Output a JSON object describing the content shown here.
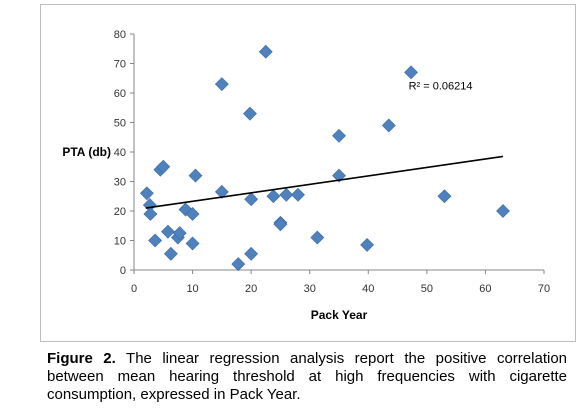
{
  "figure": {
    "caption_label": "Figure 2.",
    "caption_text": " The linear regression analysis report the positive correlation between mean hearing threshold at high frequencies with cigarette consumption, expressed in Pack Year."
  },
  "chart_data": {
    "type": "scatter",
    "xlabel": "Pack Year",
    "ylabel": "PTA (db)",
    "xlim": [
      0,
      70
    ],
    "ylim": [
      0,
      80
    ],
    "x_ticks": [
      "0",
      "10",
      "20",
      "30",
      "40",
      "50",
      "60",
      "70"
    ],
    "y_ticks": [
      "0",
      "10",
      "20",
      "30",
      "40",
      "50",
      "60",
      "70",
      "80"
    ],
    "grid": false,
    "marker": "diamond",
    "marker_color": "#4f81bd",
    "trendline": {
      "x": [
        2,
        63
      ],
      "y": [
        21,
        38.5
      ],
      "color": "#000000"
    },
    "annotation": {
      "text": "R² = 0.06214",
      "x": 52,
      "y": 62.5
    },
    "points": [
      {
        "x": 2.2,
        "y": 26
      },
      {
        "x": 2.7,
        "y": 22
      },
      {
        "x": 2.8,
        "y": 19
      },
      {
        "x": 3.6,
        "y": 10
      },
      {
        "x": 4.5,
        "y": 34
      },
      {
        "x": 5,
        "y": 35
      },
      {
        "x": 5.8,
        "y": 13
      },
      {
        "x": 6.3,
        "y": 5.5
      },
      {
        "x": 7.5,
        "y": 11
      },
      {
        "x": 7.8,
        "y": 12.5
      },
      {
        "x": 8.8,
        "y": 20.5
      },
      {
        "x": 10,
        "y": 19
      },
      {
        "x": 10,
        "y": 9
      },
      {
        "x": 10.5,
        "y": 32
      },
      {
        "x": 15,
        "y": 63
      },
      {
        "x": 15,
        "y": 26.5
      },
      {
        "x": 17.8,
        "y": 2
      },
      {
        "x": 19.8,
        "y": 53
      },
      {
        "x": 20,
        "y": 24
      },
      {
        "x": 20,
        "y": 5.5
      },
      {
        "x": 22.5,
        "y": 74
      },
      {
        "x": 23.8,
        "y": 25
      },
      {
        "x": 25,
        "y": 16
      },
      {
        "x": 25,
        "y": 15.5
      },
      {
        "x": 26,
        "y": 25.5
      },
      {
        "x": 28,
        "y": 25.5
      },
      {
        "x": 31.3,
        "y": 11
      },
      {
        "x": 35,
        "y": 45.5
      },
      {
        "x": 35,
        "y": 32
      },
      {
        "x": 39.8,
        "y": 8.5
      },
      {
        "x": 43.5,
        "y": 49
      },
      {
        "x": 47.3,
        "y": 67
      },
      {
        "x": 53,
        "y": 25
      },
      {
        "x": 63,
        "y": 20
      }
    ]
  }
}
